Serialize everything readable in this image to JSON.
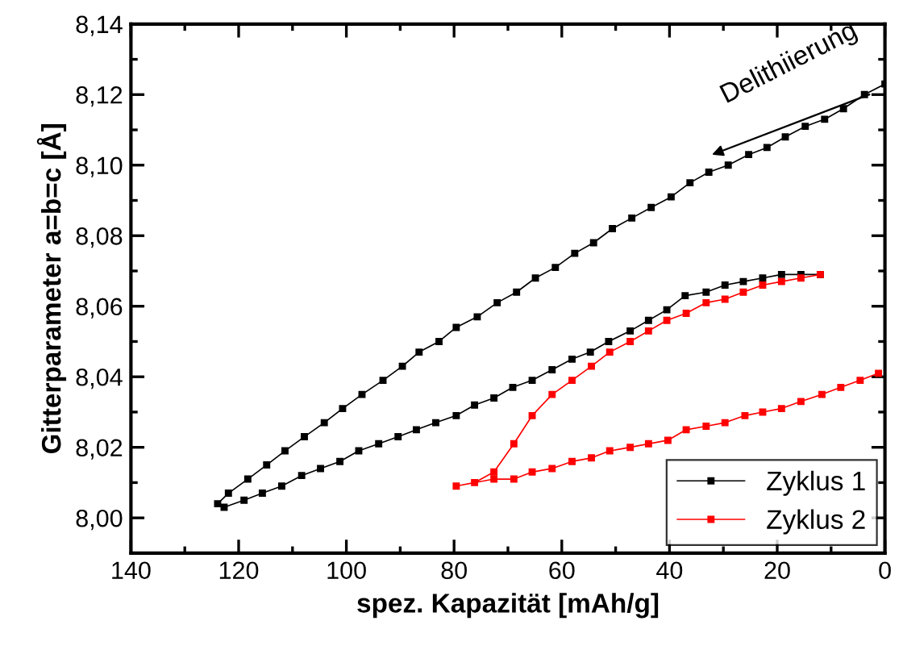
{
  "chart_data": {
    "type": "line",
    "xlabel": "spez. Kapazität [mAh/g]",
    "ylabel": "Gitterparameter a=b=c [Å]",
    "annotations": [
      "Delithiierung"
    ],
    "xlim": [
      140,
      0
    ],
    "ylim": [
      7.99,
      8.14
    ],
    "xticks": [
      140,
      {
        "value": 130,
        "label": null
      },
      120,
      {
        "value": 110,
        "label": null
      },
      100,
      {
        "value": 90,
        "label": null
      },
      80,
      {
        "value": 70,
        "label": null
      },
      60,
      {
        "value": 50,
        "label": null
      },
      40,
      {
        "value": 30,
        "label": null
      },
      20,
      {
        "value": 10,
        "label": null
      },
      0
    ],
    "yticks": [
      {
        "value": 7.99,
        "label": null
      },
      {
        "value": 8.0,
        "label": "8,00"
      },
      {
        "value": 8.01,
        "label": null
      },
      {
        "value": 8.02,
        "label": "8,02"
      },
      {
        "value": 8.03,
        "label": null
      },
      {
        "value": 8.04,
        "label": "8,04"
      },
      {
        "value": 8.05,
        "label": null
      },
      {
        "value": 8.06,
        "label": "8,06"
      },
      {
        "value": 8.07,
        "label": null
      },
      {
        "value": 8.08,
        "label": "8,08"
      },
      {
        "value": 8.09,
        "label": null
      },
      {
        "value": 8.1,
        "label": "8,10"
      },
      {
        "value": 8.11,
        "label": null
      },
      {
        "value": 8.12,
        "label": "8,12"
      },
      {
        "value": 8.13,
        "label": null
      },
      {
        "value": 8.14,
        "label": "8,14"
      }
    ],
    "grid": false,
    "legend": "bottom right",
    "marker": "square",
    "line_style": "solid",
    "series": [
      {
        "name": "Zyklus 1",
        "color": "#000000",
        "x": [
          0.0,
          3.8,
          7.7,
          11.2,
          14.8,
          18.5,
          21.9,
          25.3,
          29.1,
          32.7,
          36.2,
          39.7,
          43.4,
          47.0,
          50.6,
          54.1,
          57.6,
          61.2,
          64.9,
          68.4,
          72.0,
          75.7,
          79.6,
          82.8,
          86.5,
          89.6,
          93.2,
          97.1,
          100.7,
          104.1,
          107.8,
          111.4,
          114.8,
          118.3,
          121.9,
          123.9,
          122.7,
          119.0,
          115.6,
          112.0,
          108.3,
          104.8,
          101.2,
          97.7,
          94.0,
          90.4,
          87.0,
          83.4,
          79.6,
          76.2,
          72.6,
          69.1,
          65.5,
          61.8,
          58.1,
          54.7,
          51.3,
          47.3,
          43.9,
          40.5,
          37.1,
          33.2,
          29.7,
          26.3,
          22.7,
          19.2,
          15.6,
          12.0
        ],
        "values": [
          8.123,
          8.12,
          8.116,
          8.113,
          8.111,
          8.108,
          8.105,
          8.103,
          8.1,
          8.098,
          8.095,
          8.091,
          8.088,
          8.085,
          8.082,
          8.078,
          8.075,
          8.071,
          8.068,
          8.064,
          8.061,
          8.057,
          8.054,
          8.05,
          8.047,
          8.043,
          8.039,
          8.035,
          8.031,
          8.027,
          8.023,
          8.019,
          8.015,
          8.011,
          8.007,
          8.004,
          8.003,
          8.005,
          8.007,
          8.009,
          8.012,
          8.014,
          8.016,
          8.019,
          8.021,
          8.023,
          8.025,
          8.027,
          8.029,
          8.032,
          8.034,
          8.037,
          8.039,
          8.042,
          8.045,
          8.047,
          8.05,
          8.053,
          8.056,
          8.059,
          8.063,
          8.064,
          8.066,
          8.067,
          8.068,
          8.069,
          8.069,
          8.069
        ]
      },
      {
        "name": "Zyklus 2",
        "color": "#ff0000",
        "x": [
          12.0,
          15.6,
          19.2,
          22.7,
          26.3,
          29.7,
          33.2,
          36.9,
          40.5,
          43.9,
          47.3,
          51.1,
          54.5,
          58.1,
          61.8,
          65.5,
          68.9,
          72.6,
          76.2,
          79.6,
          72.6,
          68.9,
          65.5,
          61.8,
          58.1,
          54.5,
          51.1,
          47.3,
          43.9,
          40.3,
          36.9,
          33.2,
          29.7,
          26.0,
          22.7,
          19.2,
          15.6,
          11.7,
          8.2,
          4.6,
          1.2
        ],
        "values": [
          8.069,
          8.068,
          8.067,
          8.066,
          8.064,
          8.062,
          8.061,
          8.058,
          8.056,
          8.053,
          8.05,
          8.047,
          8.043,
          8.039,
          8.035,
          8.029,
          8.021,
          8.013,
          8.01,
          8.009,
          8.011,
          8.011,
          8.013,
          8.014,
          8.016,
          8.017,
          8.019,
          8.02,
          8.021,
          8.022,
          8.025,
          8.026,
          8.027,
          8.029,
          8.03,
          8.031,
          8.033,
          8.035,
          8.037,
          8.039,
          8.041
        ]
      }
    ]
  }
}
